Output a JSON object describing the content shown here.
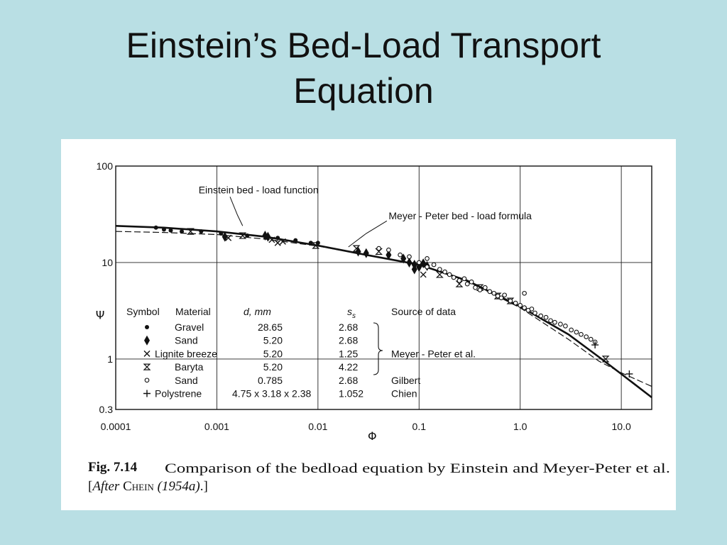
{
  "slide": {
    "title_line1": "Einstein’s Bed-Load Transport",
    "title_line2": "Equation"
  },
  "figure": {
    "caption_label": "Fig. 7.14",
    "caption_text": "Comparison of the bedload equation by Einstein and Meyer-Peter et al.",
    "caption_source_prefix": "[",
    "caption_source_italic": "After",
    "caption_source_author": "Chein",
    "caption_source_year": "(1954a)",
    "caption_source_suffix": ".]"
  },
  "chart_data": {
    "type": "scatter",
    "xlabel": "Φ",
    "ylabel": "Ψ",
    "x_scale": "log",
    "y_scale": "log",
    "xlim": [
      0.0001,
      20
    ],
    "ylim": [
      0.3,
      100
    ],
    "x_ticks": [
      {
        "value": 0.0001,
        "label": "0.0001"
      },
      {
        "value": 0.001,
        "label": "0.001"
      },
      {
        "value": 0.01,
        "label": "0.01"
      },
      {
        "value": 0.1,
        "label": "0.1"
      },
      {
        "value": 1,
        "label": "1.0"
      },
      {
        "value": 10,
        "label": "10.0"
      }
    ],
    "y_ticks": [
      {
        "value": 100,
        "label": "100"
      },
      {
        "value": 10,
        "label": "10"
      },
      {
        "value": 1,
        "label": "1"
      },
      {
        "value": 0.3,
        "label": "0.3"
      }
    ],
    "grid": true,
    "curves": [
      {
        "name": "Einstein bed-load function",
        "style": "solid",
        "x": [
          0.0001,
          0.0003,
          0.001,
          0.003,
          0.01,
          0.03,
          0.1,
          0.3,
          1,
          3,
          6,
          10,
          20
        ],
        "y": [
          24,
          23,
          21,
          18.5,
          15,
          12,
          9.5,
          6.5,
          3.5,
          1.8,
          1.05,
          0.7,
          0.4
        ]
      },
      {
        "name": "Meyer-Peter bed-load formula",
        "style": "dashed",
        "x": [
          0.0001,
          0.0003,
          0.001,
          0.003,
          0.01,
          0.03,
          0.1,
          0.3,
          1,
          3,
          6,
          10,
          20
        ],
        "y": [
          21,
          20.5,
          19.5,
          17.5,
          14.8,
          12,
          9.6,
          6.4,
          3.4,
          1.6,
          0.95,
          0.72,
          0.52
        ]
      }
    ],
    "annotations": [
      {
        "text": "Einstein bed - load function",
        "x": 0.00066,
        "y": 52
      },
      {
        "text": "Meyer - Peter bed - load formula",
        "x": 0.05,
        "y": 28
      }
    ],
    "legend": {
      "placement": "lower-left",
      "headers": [
        "Symbol",
        "Material",
        "d, mm",
        "s",
        "Source of data"
      ],
      "header_subscript": "s",
      "rows": [
        {
          "symbol": "dot",
          "material": "Gravel",
          "d": "28.65",
          "s": "2.68",
          "source": ""
        },
        {
          "symbol": "diamond",
          "material": "Sand",
          "d": "5.20",
          "s": "2.68",
          "source": ""
        },
        {
          "symbol": "x",
          "material": "Lignite breeze",
          "d": "5.20",
          "s": "1.25",
          "source": "Meyer - Peter et al."
        },
        {
          "symbol": "hourglass",
          "material": "Baryta",
          "d": "5.20",
          "s": "4.22",
          "source": ""
        },
        {
          "symbol": "circle",
          "material": "Sand",
          "d": "0.785",
          "s": "2.68",
          "source": "Gilbert"
        },
        {
          "symbol": "plus",
          "material": "Polystrene",
          "d": "4.75 x 3.18 x 2.38",
          "s": "1.052",
          "source": "Chien"
        }
      ]
    },
    "series": [
      {
        "symbol": "dot",
        "points": [
          [
            0.00025,
            23
          ],
          [
            0.0003,
            22
          ],
          [
            0.00035,
            21.5
          ],
          [
            0.00045,
            21
          ],
          [
            0.0007,
            21
          ],
          [
            0.0011,
            20
          ],
          [
            0.002,
            19
          ],
          [
            0.004,
            18
          ],
          [
            0.006,
            17
          ],
          [
            0.0085,
            16
          ],
          [
            0.01,
            16
          ]
        ]
      },
      {
        "symbol": "diamond",
        "points": [
          [
            0.0012,
            18.5
          ],
          [
            0.003,
            19
          ],
          [
            0.0032,
            18.5
          ],
          [
            0.025,
            13
          ],
          [
            0.03,
            12.5
          ],
          [
            0.05,
            12
          ],
          [
            0.07,
            11
          ],
          [
            0.08,
            10
          ],
          [
            0.09,
            9.5
          ],
          [
            0.1,
            9
          ],
          [
            0.11,
            9.8
          ],
          [
            0.12,
            9.2
          ],
          [
            0.09,
            8.5
          ]
        ]
      },
      {
        "symbol": "x",
        "points": [
          [
            0.0013,
            18
          ],
          [
            0.0035,
            17.2
          ],
          [
            0.004,
            16
          ],
          [
            0.0045,
            16.5
          ],
          [
            0.11,
            7.5
          ]
        ]
      },
      {
        "symbol": "hourglass",
        "points": [
          [
            0.00055,
            21
          ],
          [
            0.0018,
            19
          ],
          [
            0.0095,
            15
          ],
          [
            0.024,
            14
          ],
          [
            0.04,
            13
          ],
          [
            0.16,
            7.5
          ],
          [
            0.25,
            6
          ],
          [
            0.4,
            5.5
          ],
          [
            0.6,
            4.5
          ],
          [
            0.8,
            4
          ],
          [
            7,
            1
          ]
        ]
      },
      {
        "symbol": "circle",
        "points": [
          [
            0.04,
            14
          ],
          [
            0.05,
            13.5
          ],
          [
            0.065,
            12
          ],
          [
            0.08,
            11.5
          ],
          [
            0.1,
            10
          ],
          [
            0.12,
            9
          ],
          [
            0.14,
            9.5
          ],
          [
            0.16,
            8.5
          ],
          [
            0.18,
            8
          ],
          [
            0.2,
            7.5
          ],
          [
            0.22,
            7
          ],
          [
            0.25,
            6.5
          ],
          [
            0.28,
            6.8
          ],
          [
            0.3,
            6
          ],
          [
            0.33,
            6.3
          ],
          [
            0.36,
            5.5
          ],
          [
            0.4,
            5.2
          ],
          [
            0.45,
            5.5
          ],
          [
            0.5,
            5
          ],
          [
            0.55,
            4.8
          ],
          [
            0.6,
            4.5
          ],
          [
            0.65,
            4.3
          ],
          [
            0.7,
            4.6
          ],
          [
            0.8,
            4
          ],
          [
            0.9,
            3.8
          ],
          [
            1.0,
            3.6
          ],
          [
            1.1,
            3.4
          ],
          [
            1.2,
            3.2
          ],
          [
            1.3,
            3.3
          ],
          [
            1.4,
            3.0
          ],
          [
            1.6,
            2.8
          ],
          [
            1.8,
            2.7
          ],
          [
            2.0,
            2.5
          ],
          [
            2.2,
            2.4
          ],
          [
            2.5,
            2.3
          ],
          [
            2.8,
            2.2
          ],
          [
            3.2,
            2.0
          ],
          [
            3.6,
            1.9
          ],
          [
            4.0,
            1.8
          ],
          [
            4.5,
            1.7
          ],
          [
            5.0,
            1.6
          ],
          [
            5.5,
            1.5
          ],
          [
            1.1,
            4.8
          ],
          [
            0.12,
            11
          ]
        ]
      },
      {
        "symbol": "plus",
        "points": [
          [
            5.5,
            1.4
          ],
          [
            12,
            0.7
          ]
        ]
      }
    ]
  }
}
